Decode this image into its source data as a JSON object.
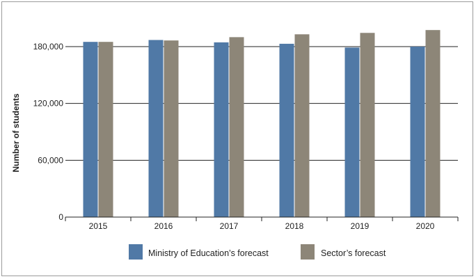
{
  "chart_data": {
    "type": "bar",
    "title": "",
    "xlabel": "",
    "ylabel": "Number of students",
    "categories": [
      "2015",
      "2016",
      "2017",
      "2018",
      "2019",
      "2020"
    ],
    "series": [
      {
        "name": "Ministry of Education’s forecast",
        "color": "#5079a6",
        "values": [
          185000,
          187000,
          184500,
          183000,
          179000,
          180000
        ]
      },
      {
        "name": "Sector’s forecast",
        "color": "#8d8678",
        "values": [
          185000,
          186500,
          190000,
          193000,
          194500,
          197500
        ]
      }
    ],
    "ylim": [
      0,
      180000
    ],
    "yticks": [
      0,
      60000,
      120000,
      180000
    ],
    "ytick_labels": [
      "0",
      "60,000",
      "120,000",
      "180,000"
    ],
    "grid": "horizontal",
    "legend_position": "bottom"
  }
}
